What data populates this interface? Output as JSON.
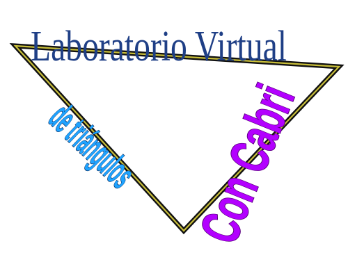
{
  "logo": {
    "title": "Laboratorio Virtual",
    "subtitle": "de triángulos",
    "tagline": "Con Cabri",
    "colors": {
      "triangle_outer": "#111111",
      "triangle_inner": "#c9bf3a",
      "title": "#1f3f86",
      "subtitle_fill": "#1fa3ff",
      "subtitle_shadow": "#0a2a5c",
      "tagline_fill": "#b300ff",
      "tagline_shadow": "#5a007f"
    }
  }
}
